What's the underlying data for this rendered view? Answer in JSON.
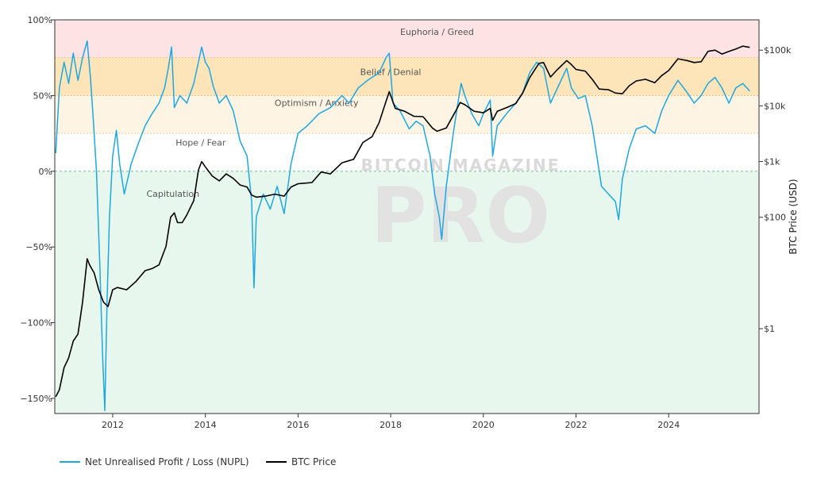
{
  "watermark": {
    "line1": "BITCOIN MAGAZINE",
    "line2": "PRO"
  },
  "chart_data": {
    "type": "line",
    "x_range": [
      2010.75,
      2025.95
    ],
    "x_ticks": [
      {
        "value": 2012,
        "label": "2012"
      },
      {
        "value": 2014,
        "label": "2014"
      },
      {
        "value": 2016,
        "label": "2016"
      },
      {
        "value": 2018,
        "label": "2018"
      },
      {
        "value": 2020,
        "label": "2020"
      },
      {
        "value": 2022,
        "label": "2022"
      },
      {
        "value": 2024,
        "label": "2024"
      }
    ],
    "y_left": {
      "range": [
        -1.6,
        1.0
      ],
      "ticks": [
        {
          "value": 1.0,
          "label": "100%"
        },
        {
          "value": 0.5,
          "label": "50%"
        },
        {
          "value": 0.0,
          "label": "0%"
        },
        {
          "value": -0.5,
          "label": "−50%"
        },
        {
          "value": -1.0,
          "label": "−100%"
        },
        {
          "value": -1.5,
          "label": "−150%"
        }
      ]
    },
    "y_right": {
      "title": "BTC Price (USD)",
      "scale": "log",
      "range": [
        0.03,
        350000
      ],
      "ticks": [
        {
          "value": 100000,
          "label": "$100k"
        },
        {
          "value": 10000,
          "label": "$10k"
        },
        {
          "value": 1000,
          "label": "$1k"
        },
        {
          "value": 100,
          "label": "$100"
        },
        {
          "value": 1,
          "label": "$1"
        }
      ]
    },
    "zones": [
      {
        "name": "Euphoria / Greed",
        "from": 0.75,
        "to": 1.0,
        "color": "#fde3e3",
        "label_x": 2019.0,
        "label_y": 0.9
      },
      {
        "name": "Belief / Denial",
        "from": 0.5,
        "to": 0.75,
        "color": "#fde4b9",
        "label_x": 2018.0,
        "label_y": 0.635
      },
      {
        "name": "Optimism / Anxiety",
        "from": 0.25,
        "to": 0.5,
        "color": "#fef4e3",
        "label_x": 2016.4,
        "label_y": 0.43
      },
      {
        "name": "Hope / Fear",
        "from": 0.0,
        "to": 0.25,
        "color": "#ffffff",
        "label_x": 2013.9,
        "label_y": 0.17
      },
      {
        "name": "Capitulation",
        "from": -1.6,
        "to": 0.0,
        "color": "#e8f7ee",
        "label_x": 2013.3,
        "label_y": -0.17
      }
    ],
    "series": [
      {
        "name": "Net Unrealised Profit / Loss (NUPL)",
        "color": "#1ea7e1",
        "axis": "left",
        "points": [
          [
            2010.77,
            0.12
          ],
          [
            2010.85,
            0.55
          ],
          [
            2010.95,
            0.72
          ],
          [
            2011.05,
            0.58
          ],
          [
            2011.15,
            0.78
          ],
          [
            2011.25,
            0.6
          ],
          [
            2011.35,
            0.75
          ],
          [
            2011.45,
            0.86
          ],
          [
            2011.52,
            0.62
          ],
          [
            2011.58,
            0.35
          ],
          [
            2011.65,
            0.0
          ],
          [
            2011.72,
            -0.6
          ],
          [
            2011.78,
            -1.2
          ],
          [
            2011.83,
            -1.58
          ],
          [
            2011.88,
            -0.85
          ],
          [
            2011.93,
            -0.3
          ],
          [
            2012.0,
            0.1
          ],
          [
            2012.08,
            0.27
          ],
          [
            2012.15,
            0.05
          ],
          [
            2012.25,
            -0.15
          ],
          [
            2012.4,
            0.05
          ],
          [
            2012.55,
            0.18
          ],
          [
            2012.7,
            0.3
          ],
          [
            2012.85,
            0.38
          ],
          [
            2013.0,
            0.45
          ],
          [
            2013.12,
            0.55
          ],
          [
            2013.2,
            0.68
          ],
          [
            2013.27,
            0.82
          ],
          [
            2013.33,
            0.42
          ],
          [
            2013.45,
            0.5
          ],
          [
            2013.6,
            0.45
          ],
          [
            2013.75,
            0.58
          ],
          [
            2013.85,
            0.72
          ],
          [
            2013.92,
            0.82
          ],
          [
            2014.0,
            0.72
          ],
          [
            2014.08,
            0.68
          ],
          [
            2014.17,
            0.56
          ],
          [
            2014.3,
            0.45
          ],
          [
            2014.45,
            0.5
          ],
          [
            2014.6,
            0.4
          ],
          [
            2014.75,
            0.2
          ],
          [
            2014.9,
            0.1
          ],
          [
            2015.0,
            -0.2
          ],
          [
            2015.05,
            -0.77
          ],
          [
            2015.1,
            -0.3
          ],
          [
            2015.25,
            -0.15
          ],
          [
            2015.4,
            -0.25
          ],
          [
            2015.55,
            -0.1
          ],
          [
            2015.7,
            -0.28
          ],
          [
            2015.85,
            0.05
          ],
          [
            2016.0,
            0.25
          ],
          [
            2016.2,
            0.3
          ],
          [
            2016.45,
            0.38
          ],
          [
            2016.7,
            0.42
          ],
          [
            2016.95,
            0.5
          ],
          [
            2017.1,
            0.45
          ],
          [
            2017.3,
            0.55
          ],
          [
            2017.5,
            0.6
          ],
          [
            2017.75,
            0.65
          ],
          [
            2017.9,
            0.75
          ],
          [
            2017.97,
            0.78
          ],
          [
            2018.05,
            0.45
          ],
          [
            2018.2,
            0.4
          ],
          [
            2018.4,
            0.28
          ],
          [
            2018.55,
            0.33
          ],
          [
            2018.7,
            0.3
          ],
          [
            2018.85,
            0.1
          ],
          [
            2018.95,
            -0.15
          ],
          [
            2019.05,
            -0.3
          ],
          [
            2019.1,
            -0.45
          ],
          [
            2019.2,
            -0.1
          ],
          [
            2019.35,
            0.25
          ],
          [
            2019.45,
            0.45
          ],
          [
            2019.52,
            0.58
          ],
          [
            2019.6,
            0.5
          ],
          [
            2019.75,
            0.38
          ],
          [
            2019.9,
            0.3
          ],
          [
            2020.0,
            0.38
          ],
          [
            2020.15,
            0.47
          ],
          [
            2020.2,
            0.1
          ],
          [
            2020.3,
            0.3
          ],
          [
            2020.5,
            0.38
          ],
          [
            2020.7,
            0.45
          ],
          [
            2020.85,
            0.52
          ],
          [
            2021.0,
            0.65
          ],
          [
            2021.15,
            0.72
          ],
          [
            2021.3,
            0.68
          ],
          [
            2021.45,
            0.45
          ],
          [
            2021.6,
            0.55
          ],
          [
            2021.8,
            0.68
          ],
          [
            2021.9,
            0.55
          ],
          [
            2022.05,
            0.48
          ],
          [
            2022.2,
            0.5
          ],
          [
            2022.35,
            0.3
          ],
          [
            2022.45,
            0.1
          ],
          [
            2022.55,
            -0.1
          ],
          [
            2022.7,
            -0.15
          ],
          [
            2022.85,
            -0.2
          ],
          [
            2022.92,
            -0.32
          ],
          [
            2023.0,
            -0.05
          ],
          [
            2023.15,
            0.15
          ],
          [
            2023.3,
            0.28
          ],
          [
            2023.5,
            0.3
          ],
          [
            2023.7,
            0.25
          ],
          [
            2023.85,
            0.4
          ],
          [
            2024.0,
            0.5
          ],
          [
            2024.2,
            0.6
          ],
          [
            2024.4,
            0.52
          ],
          [
            2024.55,
            0.45
          ],
          [
            2024.7,
            0.5
          ],
          [
            2024.85,
            0.58
          ],
          [
            2025.0,
            0.62
          ],
          [
            2025.15,
            0.55
          ],
          [
            2025.3,
            0.45
          ],
          [
            2025.45,
            0.55
          ],
          [
            2025.6,
            0.58
          ],
          [
            2025.75,
            0.53
          ]
        ]
      },
      {
        "name": "BTC Price",
        "color": "#000000",
        "axis": "right",
        "points": [
          [
            2010.77,
            0.06
          ],
          [
            2010.85,
            0.08
          ],
          [
            2010.95,
            0.2
          ],
          [
            2011.05,
            0.3
          ],
          [
            2011.15,
            0.6
          ],
          [
            2011.25,
            0.8
          ],
          [
            2011.35,
            3.0
          ],
          [
            2011.45,
            18
          ],
          [
            2011.5,
            14
          ],
          [
            2011.6,
            10
          ],
          [
            2011.7,
            5
          ],
          [
            2011.8,
            3
          ],
          [
            2011.9,
            2.5
          ],
          [
            2012.0,
            5
          ],
          [
            2012.1,
            5.5
          ],
          [
            2012.3,
            5
          ],
          [
            2012.5,
            7
          ],
          [
            2012.7,
            11
          ],
          [
            2012.85,
            12
          ],
          [
            2013.0,
            14
          ],
          [
            2013.15,
            30
          ],
          [
            2013.25,
            100
          ],
          [
            2013.33,
            120
          ],
          [
            2013.4,
            80
          ],
          [
            2013.5,
            80
          ],
          [
            2013.6,
            110
          ],
          [
            2013.75,
            200
          ],
          [
            2013.85,
            700
          ],
          [
            2013.92,
            1000
          ],
          [
            2014.0,
            800
          ],
          [
            2014.15,
            550
          ],
          [
            2014.3,
            450
          ],
          [
            2014.45,
            600
          ],
          [
            2014.6,
            500
          ],
          [
            2014.75,
            380
          ],
          [
            2014.9,
            350
          ],
          [
            2015.0,
            250
          ],
          [
            2015.1,
            230
          ],
          [
            2015.3,
            240
          ],
          [
            2015.5,
            260
          ],
          [
            2015.7,
            240
          ],
          [
            2015.85,
            350
          ],
          [
            2016.0,
            400
          ],
          [
            2016.3,
            420
          ],
          [
            2016.5,
            650
          ],
          [
            2016.7,
            600
          ],
          [
            2016.95,
            950
          ],
          [
            2017.2,
            1100
          ],
          [
            2017.4,
            2200
          ],
          [
            2017.6,
            2800
          ],
          [
            2017.75,
            5000
          ],
          [
            2017.9,
            12000
          ],
          [
            2017.97,
            18000
          ],
          [
            2018.1,
            9000
          ],
          [
            2018.3,
            8000
          ],
          [
            2018.5,
            6500
          ],
          [
            2018.7,
            6400
          ],
          [
            2018.9,
            4000
          ],
          [
            2019.0,
            3500
          ],
          [
            2019.2,
            4000
          ],
          [
            2019.4,
            8000
          ],
          [
            2019.5,
            11500
          ],
          [
            2019.6,
            10500
          ],
          [
            2019.8,
            8000
          ],
          [
            2020.0,
            7500
          ],
          [
            2020.15,
            9000
          ],
          [
            2020.2,
            5500
          ],
          [
            2020.3,
            8000
          ],
          [
            2020.5,
            9300
          ],
          [
            2020.7,
            11000
          ],
          [
            2020.85,
            17000
          ],
          [
            2021.0,
            32000
          ],
          [
            2021.2,
            58000
          ],
          [
            2021.3,
            60000
          ],
          [
            2021.45,
            33000
          ],
          [
            2021.6,
            45000
          ],
          [
            2021.8,
            65000
          ],
          [
            2021.9,
            55000
          ],
          [
            2022.0,
            45000
          ],
          [
            2022.2,
            42000
          ],
          [
            2022.35,
            30000
          ],
          [
            2022.5,
            20000
          ],
          [
            2022.7,
            19500
          ],
          [
            2022.85,
            17000
          ],
          [
            2023.0,
            16500
          ],
          [
            2023.15,
            23000
          ],
          [
            2023.3,
            28000
          ],
          [
            2023.5,
            30000
          ],
          [
            2023.7,
            26000
          ],
          [
            2023.85,
            35000
          ],
          [
            2024.0,
            43000
          ],
          [
            2024.2,
            70000
          ],
          [
            2024.4,
            65000
          ],
          [
            2024.55,
            60000
          ],
          [
            2024.7,
            62000
          ],
          [
            2024.85,
            95000
          ],
          [
            2025.0,
            100000
          ],
          [
            2025.15,
            85000
          ],
          [
            2025.3,
            95000
          ],
          [
            2025.45,
            105000
          ],
          [
            2025.6,
            118000
          ],
          [
            2025.75,
            112000
          ]
        ]
      }
    ]
  }
}
